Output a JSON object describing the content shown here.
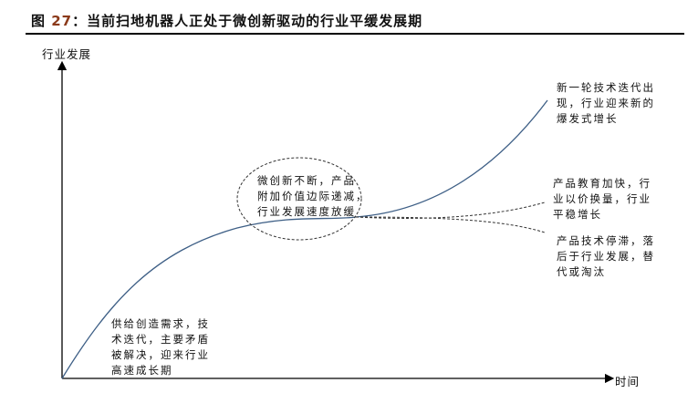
{
  "title": {
    "prefix": "图 ",
    "number": "27",
    "text": "：当前扫地机器人正处于微创新驱动的行业平缓发展期"
  },
  "axes": {
    "y_label": "行业发展",
    "x_label": "时间"
  },
  "annotations": {
    "early": "供给创造需求，技\n术迭代，主要矛盾\n被解决，迎来行业\n高速成长期",
    "middle": "微创新不断，产品\n附加价值边际递减，\n行业发展速度放缓",
    "upper": "新一轮技术迭代出\n现，行业迎来新的\n爆发式增长",
    "flat": "产品教育加快，行\n业以价换量，行业\n平稳增长",
    "decline": "产品技术停滞，落\n后于行业发展，替\n代或淘汰"
  },
  "colors": {
    "curve": "#3e5f86",
    "dashed": "#333333",
    "title_number": "#8b3a1a"
  }
}
